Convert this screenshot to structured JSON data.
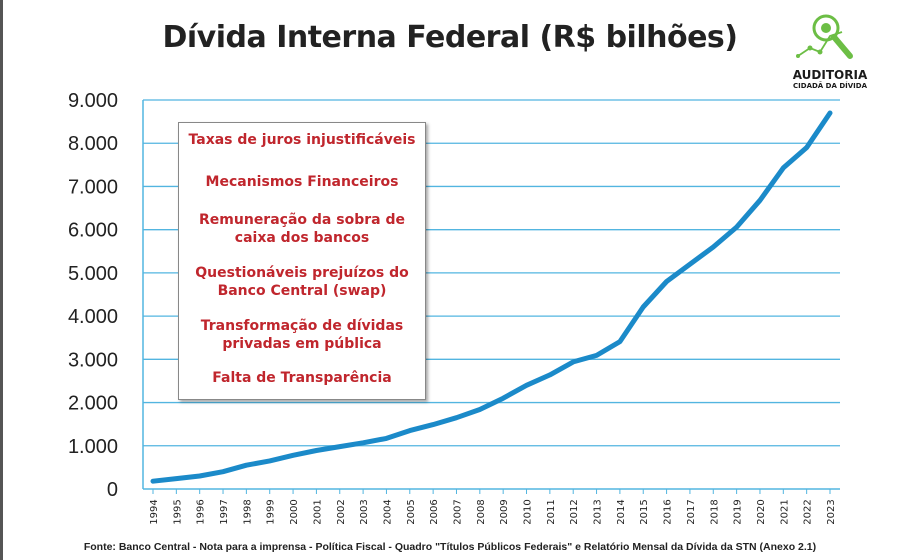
{
  "brand": {
    "line1": "AUDITORIA",
    "line2": "CIDADÃ DA DÍVIDA",
    "icon": "magnifier-network-icon",
    "green": "#6cbe45"
  },
  "colors": {
    "line": "#1b8ac9",
    "grid": "#52b5e0",
    "annotation_text": "#c0262d"
  },
  "annotations": [
    {
      "lines": [
        "Taxas de juros injustificáveis"
      ]
    },
    {
      "lines": [
        "Mecanismos Financeiros"
      ]
    },
    {
      "lines": [
        "Remuneração da sobra de",
        "caixa dos bancos"
      ]
    },
    {
      "lines": [
        "Questionáveis prejuízos do",
        "Banco Central (swap)"
      ]
    },
    {
      "lines": [
        "Transformação de dívidas",
        "privadas em pública"
      ]
    },
    {
      "lines": [
        "Falta de Transparência"
      ]
    }
  ],
  "source": "Fonte: Banco Central - Nota para a imprensa - Política Fiscal - Quadro \"Títulos Públicos Federais\" e Relatório Mensal da Dívida da STN (Anexo 2.1)",
  "chart_data": {
    "type": "line",
    "title": "Dívida Interna Federal (R$ bilhões)",
    "xlabel": "",
    "ylabel": "",
    "ylim": [
      0,
      9000
    ],
    "yticks": [
      0,
      1000,
      2000,
      3000,
      4000,
      5000,
      6000,
      7000,
      8000,
      9000
    ],
    "ytick_labels": [
      "0",
      "1.000",
      "2.000",
      "3.000",
      "4.000",
      "5.000",
      "6.000",
      "7.000",
      "8.000",
      "9.000"
    ],
    "grid": true,
    "x": [
      "1994",
      "1995",
      "1996",
      "1997",
      "1998",
      "1999",
      "2000",
      "2001",
      "2002",
      "2003",
      "2004",
      "2005",
      "2006",
      "2007",
      "2008",
      "2009",
      "2010",
      "2011",
      "2012",
      "2013",
      "2014",
      "2015",
      "2016",
      "2017",
      "2018",
      "2019",
      "2020",
      "2021",
      "2022",
      "2023"
    ],
    "series": [
      {
        "values": [
          180,
          240,
          300,
          400,
          550,
          650,
          780,
          890,
          980,
          1070,
          1170,
          1350,
          1490,
          1650,
          1840,
          2100,
          2400,
          2640,
          2940,
          3090,
          3410,
          4210,
          4800,
          5200,
          5600,
          6060,
          6680,
          7430,
          7900,
          8700
        ]
      }
    ]
  }
}
